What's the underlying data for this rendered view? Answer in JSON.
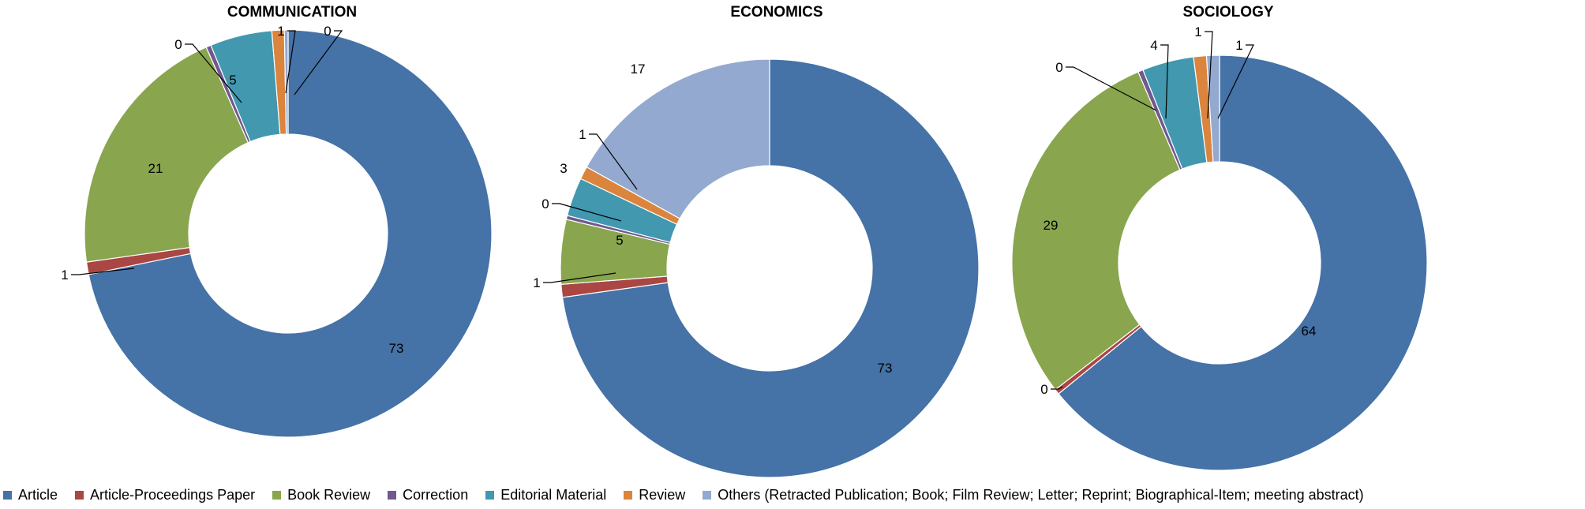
{
  "chart_data": [
    {
      "type": "pie",
      "title": "COMMUNICATION",
      "categories": [
        "Article",
        "Article-Proceedings Paper",
        "Book Review",
        "Correction",
        "Editorial Material",
        "Review",
        "Others (Retracted Publication; Book; Film Review; Letter; Reprint; Biographical-Item; meeting abstract)"
      ],
      "values": [
        73,
        1,
        21,
        0.4,
        5,
        1,
        0.3
      ],
      "labels": [
        "73",
        "1",
        "21",
        "0",
        "5",
        "1",
        "0"
      ]
    },
    {
      "type": "pie",
      "title": "ECONOMICS",
      "categories": [
        "Article",
        "Article-Proceedings Paper",
        "Book Review",
        "Correction",
        "Editorial Material",
        "Review",
        "Others (Retracted Publication; Book; Film Review; Letter; Reprint; Biographical-Item; meeting abstract)"
      ],
      "values": [
        73,
        1,
        5,
        0.3,
        3,
        1,
        17
      ],
      "labels": [
        "73",
        "1",
        "5",
        "0",
        "3",
        "1",
        "17"
      ]
    },
    {
      "type": "pie",
      "title": "SOCIOLOGY",
      "categories": [
        "Article",
        "Article-Proceedings Paper",
        "Book Review",
        "Correction",
        "Editorial Material",
        "Review",
        "Others (Retracted Publication; Book; Film Review; Letter; Reprint; Biographical-Item; meeting abstract)"
      ],
      "values": [
        64,
        0.4,
        29,
        0.4,
        4,
        1,
        1
      ],
      "labels": [
        "64",
        "0",
        "29",
        "0",
        "4",
        "1",
        "1"
      ]
    }
  ],
  "legend": [
    {
      "label": "Article",
      "color": "#4572A7"
    },
    {
      "label": "Article-Proceedings Paper",
      "color": "#AA4643"
    },
    {
      "label": "Book Review",
      "color": "#89A54E"
    },
    {
      "label": "Correction",
      "color": "#71588F"
    },
    {
      "label": "Editorial Material",
      "color": "#4198AF"
    },
    {
      "label": "Review",
      "color": "#DB843D"
    },
    {
      "label": "Others (Retracted Publication; Book; Film Review; Letter; Reprint; Biographical-Item; meeting abstract)",
      "color": "#93A9CF"
    }
  ]
}
